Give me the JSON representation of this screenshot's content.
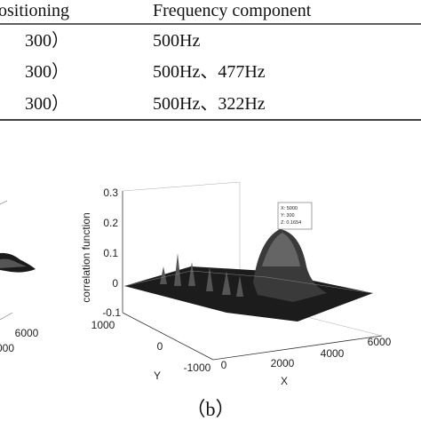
{
  "table": {
    "header": [
      "ositioning",
      "Frequency component"
    ],
    "rows": [
      [
        "300）",
        "500Hz"
      ],
      [
        "300）",
        "500Hz、477Hz"
      ],
      [
        "300）",
        "500Hz、322Hz"
      ]
    ]
  },
  "figure_a": {
    "tick_labels": [
      "6000",
      "000"
    ]
  },
  "figure_b": {
    "z_label": "correlation function",
    "z_ticks": [
      "0.3",
      "0.2",
      "0.1",
      "0",
      "-0.1"
    ],
    "y_label": "Y",
    "y_ticks": [
      "1000",
      "0",
      "-1000"
    ],
    "x_label": "X",
    "x_ticks": [
      "0",
      "2000",
      "4000",
      "6000"
    ],
    "datatip": [
      "X: 5000",
      "Y: 300",
      "Z: 0.1654"
    ],
    "caption": "（b）"
  }
}
